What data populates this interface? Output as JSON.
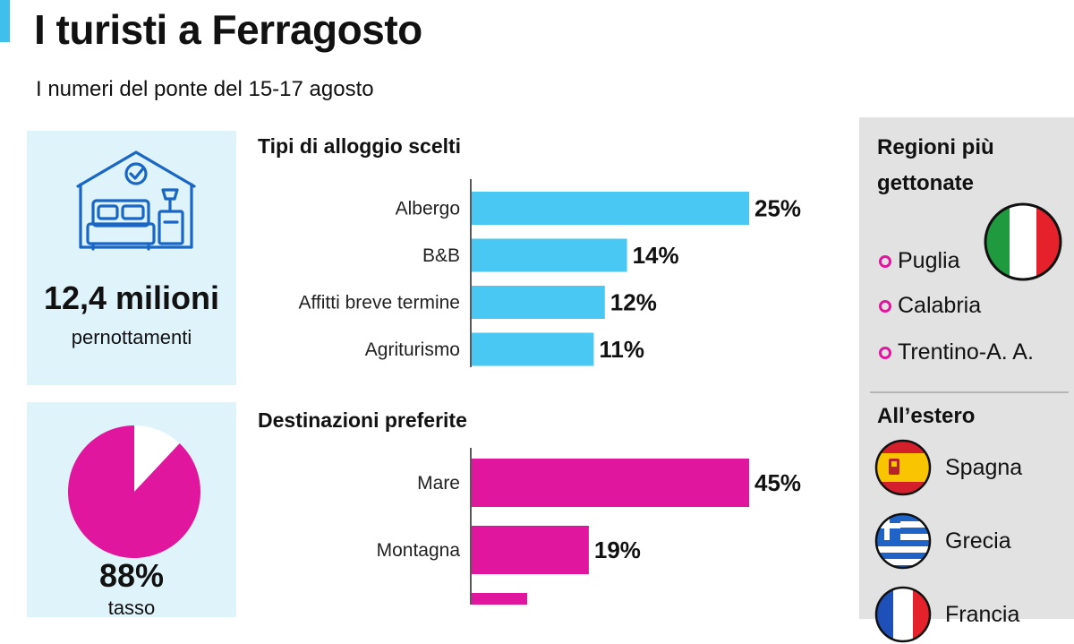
{
  "header": {
    "title": "I turisti a Ferragosto",
    "subtitle": "I numeri del ponte del 15-17 agosto"
  },
  "stat_panels": [
    {
      "value": "12,4 milioni",
      "label": "pernottamenti",
      "icon": "bedroom-icon"
    },
    {
      "value": "88%",
      "label": "tasso",
      "icon": "pie-icon"
    }
  ],
  "colors": {
    "accent": "#3fc0ec",
    "cyan_bar": "#48c8f2",
    "magenta_bar": "#e0169e",
    "panel_bg": "#dff3fb",
    "side_bg": "#e2e2e2"
  },
  "chart_data": [
    {
      "type": "bar",
      "orientation": "horizontal",
      "title": "Tipi di alloggio scelti",
      "categories": [
        "Albergo",
        "B&B",
        "Affitti breve termine",
        "Agriturismo"
      ],
      "values": [
        25,
        14,
        12,
        11
      ],
      "value_labels": [
        "25%",
        "14%",
        "12%",
        "11%"
      ],
      "xlim": [
        0,
        25
      ]
    },
    {
      "type": "bar",
      "orientation": "horizontal",
      "title": "Destinazioni preferite",
      "categories": [
        "Mare",
        "Montagna",
        ""
      ],
      "values": [
        45,
        19,
        9
      ],
      "value_labels": [
        "45%",
        "19%",
        ""
      ],
      "xlim": [
        0,
        45
      ]
    },
    {
      "type": "pie",
      "values": [
        88,
        12
      ],
      "value_label": "88%"
    }
  ],
  "side_panel": {
    "regions_title": "Regioni più gettonate",
    "regions": [
      "Puglia",
      "Calabria",
      "Trentino-A. A."
    ],
    "regions_flag": "italy-flag-icon",
    "abroad_title": "All’estero",
    "abroad": [
      {
        "name": "Spagna",
        "flag": "spain-flag-icon"
      },
      {
        "name": "Grecia",
        "flag": "greece-flag-icon"
      },
      {
        "name": "Francia",
        "flag": "france-flag-icon"
      }
    ]
  }
}
